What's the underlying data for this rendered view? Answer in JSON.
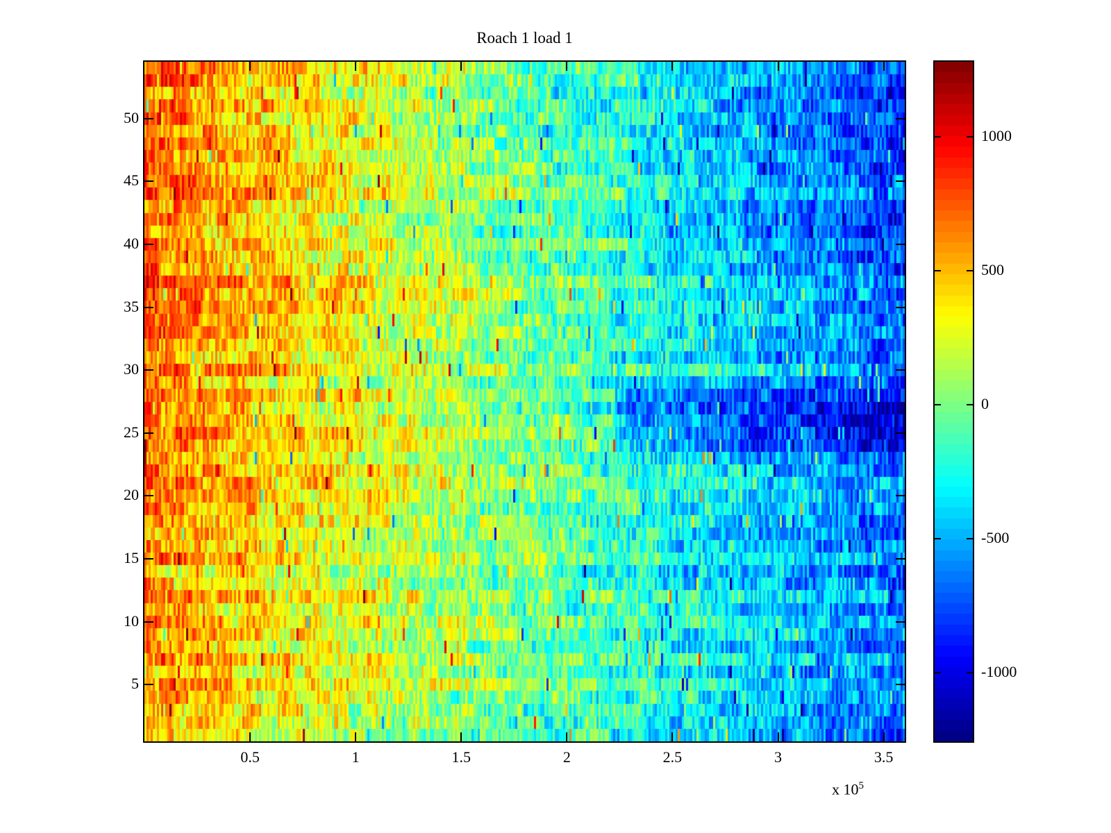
{
  "figure": {
    "background_color": "#ffffff",
    "axis_color": "#000000",
    "text_color": "#000000"
  },
  "chart_data": {
    "type": "heatmap",
    "title": "Roach 1 load 1",
    "xlabel": "",
    "ylabel": "",
    "x_axis_exponent_prefix": "x 10",
    "x_axis_exponent": "5",
    "colormap": "jet",
    "colormap_levels": 64,
    "grid": false,
    "legend": false,
    "xlim": [
      0,
      360000
    ],
    "ylim": [
      0.5,
      54.5
    ],
    "clim": [
      -1256,
      1280
    ],
    "rows": 54,
    "cols": 365,
    "x_ticks": [
      {
        "value": 50000,
        "label": "0.5"
      },
      {
        "value": 100000,
        "label": "1"
      },
      {
        "value": 150000,
        "label": "1.5"
      },
      {
        "value": 200000,
        "label": "2"
      },
      {
        "value": 250000,
        "label": "2.5"
      },
      {
        "value": 300000,
        "label": "3"
      },
      {
        "value": 350000,
        "label": "3.5"
      }
    ],
    "y_ticks": [
      {
        "value": 5,
        "label": "5"
      },
      {
        "value": 10,
        "label": "10"
      },
      {
        "value": 15,
        "label": "15"
      },
      {
        "value": 20,
        "label": "20"
      },
      {
        "value": 25,
        "label": "25"
      },
      {
        "value": 30,
        "label": "30"
      },
      {
        "value": 35,
        "label": "35"
      },
      {
        "value": 40,
        "label": "40"
      },
      {
        "value": 45,
        "label": "45"
      },
      {
        "value": 50,
        "label": "50"
      }
    ],
    "colorbar_ticks": [
      {
        "value": 1000,
        "label": "1000"
      },
      {
        "value": 500,
        "label": "500"
      },
      {
        "value": 0,
        "label": "0"
      },
      {
        "value": -500,
        "label": "-500"
      },
      {
        "value": -1000,
        "label": "-1000"
      }
    ],
    "pattern": {
      "description": "Dense vertical-stripe heatmap; mean value decreases roughly linearly from about +650 at x=0 (orange/red) to about -700 at x=3.6e5 (blue); gradient slope slightly steeper for upper rows (dark red top-left, deeper blue top-right); extra dark-blue patch for rows y=24..28 on the right ~x>2.25e5; strong per-column noise with occasional spikes.",
      "left_mean": 650,
      "right_mean": -700,
      "row_slope_gain_per_unit": 0.006,
      "row_offset_amp": 110,
      "block_noise_amp": 170,
      "block_len_cols": 7,
      "fine_noise_amp": 260,
      "spike_prob": 0.02,
      "spike_amp": 520,
      "dark_region": {
        "y_min": 24,
        "y_max": 28.5,
        "t_min": 0.62,
        "offset": -330
      },
      "seed": 1234567
    }
  }
}
